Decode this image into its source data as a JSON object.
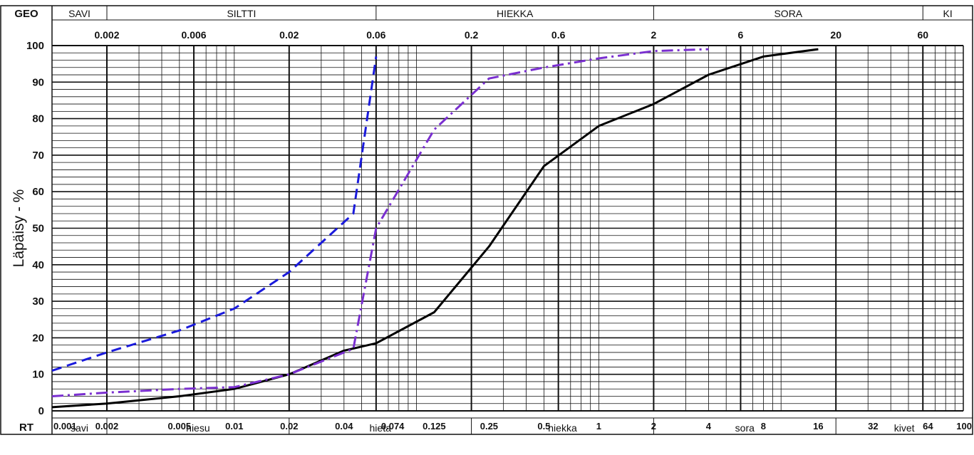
{
  "chart_data": {
    "type": "line",
    "title": "",
    "xlabel": "",
    "ylabel": "Läpäisy - %",
    "x_scale": "log",
    "xlim": [
      0.001,
      100
    ],
    "ylim": [
      0,
      100
    ],
    "y_ticks": [
      0,
      10,
      20,
      30,
      40,
      50,
      60,
      70,
      80,
      90,
      100
    ],
    "top_tick_labels": [
      {
        "value": 0.002,
        "label": "0.002"
      },
      {
        "value": 0.006,
        "label": "0.006"
      },
      {
        "value": 0.02,
        "label": "0.02"
      },
      {
        "value": 0.06,
        "label": "0.06"
      },
      {
        "value": 0.2,
        "label": "0.2"
      },
      {
        "value": 0.6,
        "label": "0.6"
      },
      {
        "value": 2,
        "label": "2"
      },
      {
        "value": 6,
        "label": "6"
      },
      {
        "value": 20,
        "label": "20"
      },
      {
        "value": 60,
        "label": "60"
      }
    ],
    "bottom_tick_labels": [
      {
        "value": 0.001,
        "label": "0.001"
      },
      {
        "value": 0.002,
        "label": "0.002"
      },
      {
        "value": 0.005,
        "label": "0.005"
      },
      {
        "value": 0.01,
        "label": "0.01"
      },
      {
        "value": 0.02,
        "label": "0.02"
      },
      {
        "value": 0.04,
        "label": "0.04"
      },
      {
        "value": 0.074,
        "label": "0.074"
      },
      {
        "value": 0.125,
        "label": "0.125"
      },
      {
        "value": 0.25,
        "label": "0.25"
      },
      {
        "value": 0.5,
        "label": "0.5"
      },
      {
        "value": 1,
        "label": "1"
      },
      {
        "value": 2,
        "label": "2"
      },
      {
        "value": 4,
        "label": "4"
      },
      {
        "value": 8,
        "label": "8"
      },
      {
        "value": 16,
        "label": "16"
      },
      {
        "value": 32,
        "label": "32"
      },
      {
        "value": 64,
        "label": "64"
      },
      {
        "value": 100,
        "label": "100"
      }
    ],
    "geo_row": {
      "label": "GEO",
      "cells": [
        {
          "label": "SAVI",
          "from": 0.001,
          "to": 0.002
        },
        {
          "label": "SILTTI",
          "from": 0.002,
          "to": 0.06
        },
        {
          "label": "HIEKKA",
          "from": 0.06,
          "to": 2
        },
        {
          "label": "SORA",
          "from": 2,
          "to": 60
        },
        {
          "label": "KI",
          "from": 60,
          "to": 100
        }
      ]
    },
    "rt_row": {
      "label": "RT",
      "cells": [
        {
          "label": "savi",
          "from": 0.001,
          "to": 0.002
        },
        {
          "label": "hiesu",
          "from": 0.002,
          "to": 0.02
        },
        {
          "label": "hieta",
          "from": 0.02,
          "to": 0.2
        },
        {
          "label": "hiekka",
          "from": 0.2,
          "to": 2
        },
        {
          "label": "sora",
          "from": 2,
          "to": 20
        },
        {
          "label": "kivet",
          "from": 20,
          "to": 100
        }
      ]
    },
    "series": [
      {
        "color": "#000000",
        "style": "solid",
        "x": [
          0.001,
          0.002,
          0.005,
          0.01,
          0.02,
          0.04,
          0.06,
          0.125,
          0.25,
          0.5,
          1,
          2,
          4,
          8,
          16
        ],
        "y": [
          1,
          2,
          4,
          6,
          10,
          16.5,
          18.5,
          27,
          45,
          67,
          78,
          84,
          92,
          97,
          99
        ]
      },
      {
        "color": "#1a1adc",
        "style": "dashed",
        "x": [
          0.001,
          0.002,
          0.005,
          0.01,
          0.02,
          0.045,
          0.06
        ],
        "y": [
          11,
          16,
          22,
          28,
          38,
          54,
          97
        ]
      },
      {
        "color": "#7a2fd0",
        "style": "dashdot",
        "x": [
          0.001,
          0.002,
          0.005,
          0.01,
          0.02,
          0.045,
          0.06,
          0.125,
          0.25,
          0.5,
          1,
          2,
          4
        ],
        "y": [
          4,
          5,
          6,
          6.5,
          10,
          17,
          50,
          77,
          91,
          94,
          96.5,
          98.5,
          99
        ]
      }
    ]
  }
}
